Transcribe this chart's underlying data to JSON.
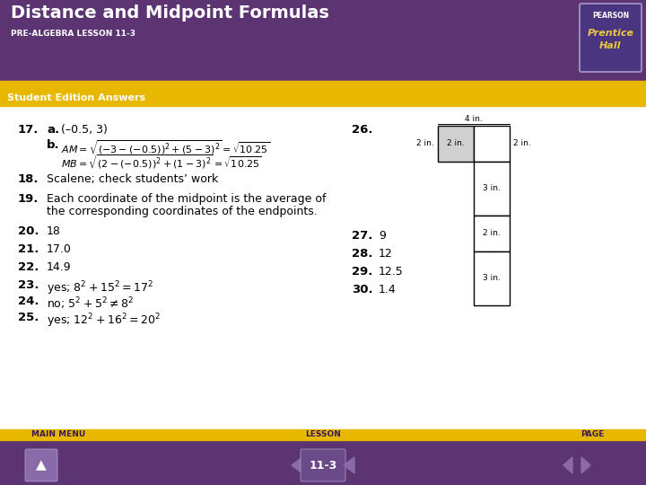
{
  "title": "Distance and Midpoint Formulas",
  "subtitle": "PRE-ALGEBRA LESSON 11-3",
  "section_header": "Student Edition Answers",
  "bg_color": "#ffffff",
  "header_bg": "#5c3472",
  "yellow_bar_color": "#e8b800",
  "section_header_bg": "#e8b800",
  "footer_bg": "#5c3472",
  "footer_yellow": "#e8b800",
  "pearson_box_color": "#4a3580",
  "footer_labels": [
    "MAIN MENU",
    "LESSON",
    "PAGE"
  ],
  "footer_lesson": "11-3"
}
